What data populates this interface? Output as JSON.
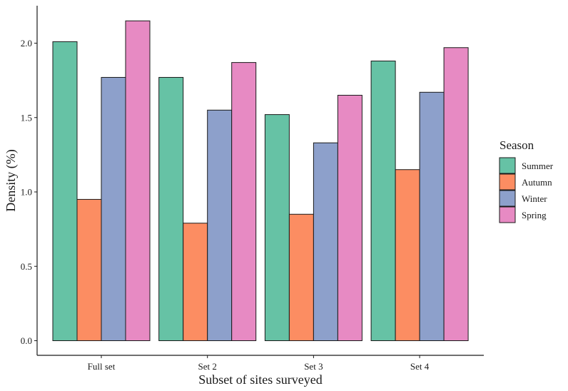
{
  "chart_data": {
    "type": "bar",
    "title": "",
    "xlabel": "Subset of sites surveyed",
    "ylabel": "Density (%)",
    "categories": [
      "Full set",
      "Set 2",
      "Set 3",
      "Set 4"
    ],
    "ylim": [
      0,
      2.25
    ],
    "yticks": [
      "0.0",
      "0.5",
      "1.0",
      "1.5",
      "2.0"
    ],
    "grid": false,
    "legend": {
      "title": "Season",
      "placement": "right"
    },
    "series": [
      {
        "name": "Summer",
        "color": "#66c2a5",
        "values": [
          2.01,
          1.77,
          1.52,
          1.88
        ]
      },
      {
        "name": "Autumn",
        "color": "#fc8d62",
        "values": [
          0.95,
          0.79,
          0.85,
          1.15
        ]
      },
      {
        "name": "Winter",
        "color": "#8da0cb",
        "values": [
          1.77,
          1.55,
          1.33,
          1.67
        ]
      },
      {
        "name": "Spring",
        "color": "#e78ac3",
        "values": [
          2.15,
          1.87,
          1.65,
          1.97
        ]
      }
    ]
  }
}
